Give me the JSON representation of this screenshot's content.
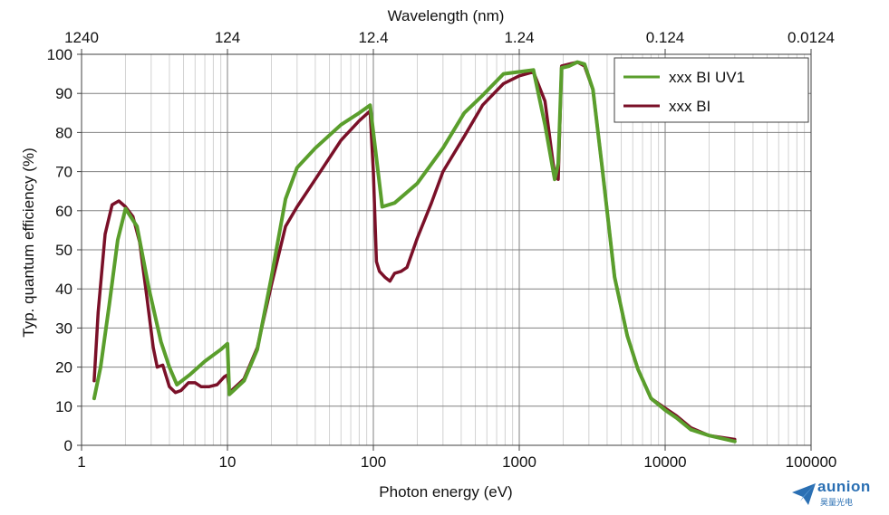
{
  "chart_data": {
    "type": "line",
    "xlabel": "Photon energy (eV)",
    "ylabel": "Typ. quantum efficiency (%)",
    "top_axis_label": "Wavelength (nm)",
    "x_scale": "log",
    "xlim": [
      1,
      100000
    ],
    "ylim": [
      0,
      100
    ],
    "grid": true,
    "legend_position": "top-right",
    "x_tick_labels": [
      "1",
      "10",
      "100",
      "1000",
      "10000",
      "100000"
    ],
    "x_tick_values": [
      1,
      10,
      100,
      1000,
      10000,
      100000
    ],
    "top_tick_labels": [
      "1240",
      "124",
      "12.4",
      "1.24",
      "0.124",
      "0.0124"
    ],
    "y_tick_labels": [
      "0",
      "10",
      "20",
      "30",
      "40",
      "50",
      "60",
      "70",
      "80",
      "90",
      "100"
    ],
    "y_tick_values": [
      0,
      10,
      20,
      30,
      40,
      50,
      60,
      70,
      80,
      90,
      100
    ],
    "series": [
      {
        "name": "xxx BI UV1",
        "color": "#5a9e2c",
        "x": [
          1.22,
          1.35,
          1.55,
          1.77,
          2.0,
          2.4,
          2.9,
          3.5,
          4.0,
          4.5,
          5.5,
          7,
          9,
          10,
          10.3,
          11,
          13,
          16,
          20,
          25,
          30,
          40,
          60,
          80,
          95,
          115,
          140,
          200,
          300,
          420,
          560,
          780,
          1000,
          1250,
          1500,
          1750,
          1850,
          1950,
          2200,
          2500,
          2800,
          3200,
          3700,
          4500,
          5500,
          6500,
          8000,
          10000,
          12000,
          15000,
          20000,
          30000
        ],
        "y": [
          12,
          20,
          36,
          52.5,
          60.5,
          56,
          40,
          26.5,
          20,
          15.5,
          18,
          21.5,
          24.5,
          26,
          13,
          14,
          16.5,
          24.5,
          43,
          63,
          71,
          76,
          82,
          85,
          87,
          61,
          62,
          67,
          76,
          85,
          89.5,
          95,
          95.5,
          96,
          82,
          68,
          72,
          96.5,
          97,
          98,
          97.5,
          91,
          71,
          43,
          28,
          19.5,
          12,
          9,
          7,
          4,
          2.5,
          1
        ]
      },
      {
        "name": "xxx BI",
        "color": "#7a1028",
        "x": [
          1.22,
          1.3,
          1.45,
          1.62,
          1.8,
          2.0,
          2.25,
          2.5,
          2.8,
          3.1,
          3.3,
          3.6,
          4.0,
          4.4,
          4.8,
          5.4,
          6.0,
          6.6,
          7.5,
          8.5,
          9.5,
          10.0,
          10.3,
          11,
          13,
          16,
          20,
          25,
          30,
          40,
          60,
          80,
          95,
          100,
          105,
          110,
          120,
          130,
          140,
          155,
          170,
          200,
          250,
          300,
          420,
          560,
          780,
          1000,
          1250,
          1500,
          1750,
          1850,
          1950,
          2200,
          2500,
          2800,
          3200,
          3700,
          4500,
          5500,
          6500,
          8000,
          10000,
          12000,
          15000,
          20000,
          30000
        ],
        "y": [
          16.5,
          34,
          54,
          61.5,
          62.5,
          61,
          58.5,
          52,
          38,
          25,
          20,
          20.5,
          15,
          13.5,
          14,
          16,
          16,
          15,
          15,
          15.5,
          17.5,
          18,
          13.5,
          14.5,
          17,
          25,
          41,
          56,
          61,
          68,
          78,
          83,
          85.5,
          70,
          47,
          44.5,
          43,
          42,
          44,
          44.5,
          45.5,
          53,
          62,
          70,
          79,
          87,
          92.5,
          94.5,
          95.5,
          88,
          69,
          68,
          97,
          97.5,
          98,
          97,
          91,
          71,
          43,
          28,
          19.5,
          12,
          9.5,
          7.5,
          4.5,
          2.5,
          1.5
        ]
      }
    ]
  },
  "logo": {
    "name": "aunion",
    "subtitle": "昊量光电"
  }
}
